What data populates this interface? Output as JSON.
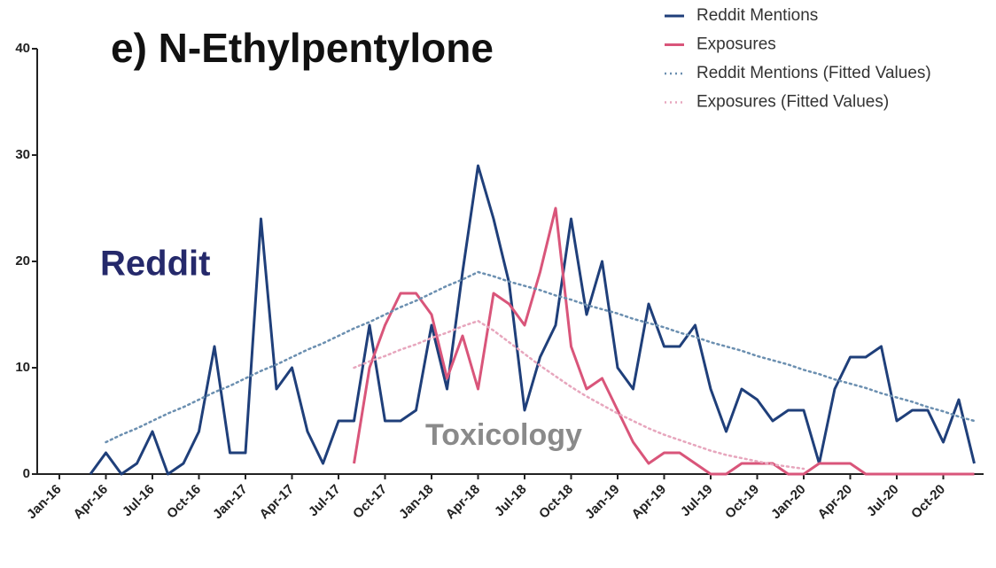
{
  "chart_data": {
    "type": "line",
    "title": "e) N-Ethylpentylone",
    "annotations": [
      {
        "text": "Reddit",
        "color": "#25296b"
      },
      {
        "text": "Toxicology",
        "color": "#8a8a8a"
      }
    ],
    "categories": [
      "Jan-16",
      null,
      null,
      "Apr-16",
      null,
      null,
      "Jul-16",
      null,
      null,
      "Oct-16",
      null,
      null,
      "Jan-17",
      null,
      null,
      "Apr-17",
      null,
      null,
      "Jul-17",
      null,
      null,
      "Oct-17",
      null,
      null,
      "Jan-18",
      null,
      null,
      "Apr-18",
      null,
      null,
      "Jul-18",
      null,
      null,
      "Oct-18",
      null,
      null,
      "Jan-19",
      null,
      null,
      "Apr-19",
      null,
      null,
      "Jul-19",
      null,
      null,
      "Oct-19",
      null,
      null,
      "Jan-20",
      null,
      null,
      "Apr-20",
      null,
      null,
      "Jul-20",
      null,
      null,
      "Oct-20",
      null,
      null
    ],
    "ylim": [
      0,
      40
    ],
    "yticks": [
      0,
      10,
      20,
      30,
      40
    ],
    "legend": "upper right",
    "series": [
      {
        "name": "Reddit Mentions",
        "color": "#1f3f7a",
        "style": "solid",
        "values": [
          null,
          null,
          0,
          2,
          0,
          1,
          4,
          0,
          1,
          4,
          12,
          2,
          2,
          24,
          8,
          10,
          4,
          1,
          5,
          5,
          14,
          5,
          5,
          6,
          14,
          8,
          19,
          29,
          24,
          18,
          6,
          11,
          14,
          24,
          15,
          20,
          10,
          8,
          16,
          12,
          12,
          14,
          8,
          4,
          8,
          7,
          5,
          6,
          6,
          1,
          8,
          11,
          11,
          12,
          5,
          6,
          6,
          3,
          7,
          1
        ]
      },
      {
        "name": "Exposures",
        "color": "#d9557a",
        "style": "solid",
        "values": [
          null,
          null,
          null,
          null,
          null,
          null,
          null,
          null,
          null,
          null,
          null,
          null,
          null,
          null,
          null,
          null,
          null,
          null,
          null,
          1,
          10,
          14,
          17,
          17,
          15,
          9,
          13,
          8,
          17,
          16,
          14,
          19,
          25,
          12,
          8,
          9,
          6,
          3,
          1,
          2,
          2,
          1,
          0,
          0,
          1,
          1,
          1,
          0,
          0,
          1,
          1,
          1,
          0,
          0,
          0,
          0,
          0,
          0,
          0,
          0
        ]
      },
      {
        "name": "Reddit Mentions (Fitted Values)",
        "color": "#6b8fb0",
        "style": "dotted",
        "values": [
          null,
          null,
          null,
          3,
          3.7,
          4.3,
          5,
          5.7,
          6.3,
          7,
          7.7,
          8.3,
          9,
          9.7,
          10.3,
          11,
          11.7,
          12.3,
          13,
          13.7,
          14.3,
          15,
          15.7,
          16.3,
          17,
          17.7,
          18.3,
          19,
          18.6,
          18.1,
          17.7,
          17.3,
          16.8,
          16.4,
          15.9,
          15.5,
          15.1,
          14.6,
          14.2,
          13.8,
          13.3,
          12.9,
          12.4,
          12,
          11.6,
          11.1,
          10.7,
          10.3,
          9.8,
          9.4,
          8.9,
          8.5,
          8.1,
          7.6,
          7.2,
          6.8,
          6.3,
          5.9,
          5.4,
          5
        ]
      },
      {
        "name": "Exposures (Fitted Values)",
        "color": "#e7a6bd",
        "style": "dotted",
        "values": [
          null,
          null,
          null,
          null,
          null,
          null,
          null,
          null,
          null,
          null,
          null,
          null,
          null,
          null,
          null,
          null,
          null,
          null,
          null,
          10,
          10.6,
          11.1,
          11.7,
          12.2,
          12.8,
          13.3,
          13.9,
          14.4,
          13.5,
          12.4,
          11.3,
          10.2,
          9.2,
          8.2,
          7.3,
          6.5,
          5.7,
          5,
          4.3,
          3.7,
          3.2,
          2.7,
          2.2,
          1.8,
          1.5,
          1.2,
          0.9,
          0.7,
          0.5,
          null,
          null,
          null,
          null,
          null,
          null,
          null,
          null,
          null,
          null,
          null
        ]
      }
    ]
  }
}
